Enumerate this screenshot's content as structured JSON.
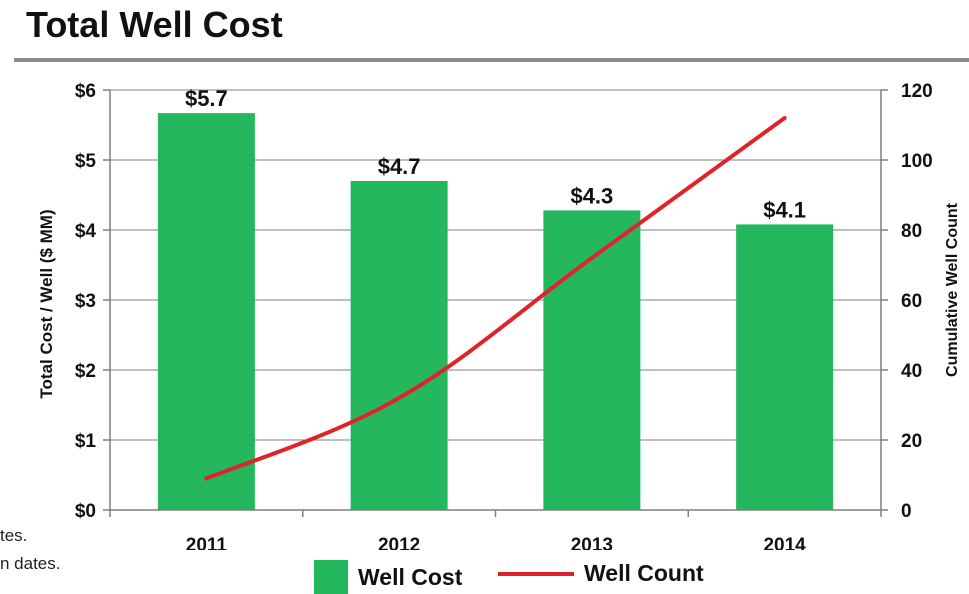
{
  "header": {
    "title": "Total Well Cost"
  },
  "footnote_fragments": [
    "tes.",
    "n dates."
  ],
  "colors": {
    "bar": "#24b75e",
    "line": "#e0232b",
    "grid": "#7f7f7f",
    "rule": "#8c8c8c"
  },
  "chart_data": {
    "type": "bar",
    "categories": [
      "2011",
      "2012",
      "2013",
      "2014"
    ],
    "series": [
      {
        "name": "Well Cost",
        "type": "bar",
        "axis": "left",
        "values": [
          5.67,
          4.7,
          4.28,
          4.08
        ],
        "data_labels": [
          "$5.7",
          "$4.7",
          "$4.3",
          "$4.1"
        ]
      },
      {
        "name": "Well Count",
        "type": "line",
        "axis": "right",
        "values": [
          9,
          32,
          72,
          112
        ]
      }
    ],
    "ylabel": "Total Cost / Well ($ MM)",
    "y2label": "Cumulative Well Count",
    "ylim": [
      0,
      6
    ],
    "y2lim": [
      0,
      120
    ],
    "y_ticks": [
      "$0",
      "$1",
      "$2",
      "$3",
      "$4",
      "$5",
      "$6"
    ],
    "y_tick_values": [
      0,
      1,
      2,
      3,
      4,
      5,
      6
    ],
    "y2_ticks": [
      "0",
      "20",
      "40",
      "60",
      "80",
      "100",
      "120"
    ],
    "y2_tick_values": [
      0,
      20,
      40,
      60,
      80,
      100,
      120
    ],
    "grid": true,
    "legend_position": "bottom-center"
  }
}
